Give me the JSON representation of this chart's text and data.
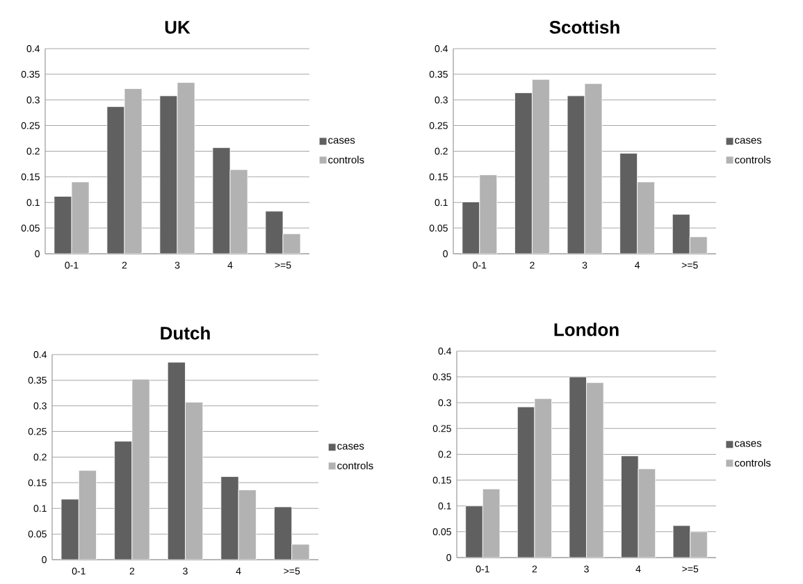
{
  "chart_data": [
    {
      "type": "bar",
      "title": "UK",
      "categories": [
        "0-1",
        "2",
        "3",
        "4",
        ">=5"
      ],
      "series": [
        {
          "name": "cases",
          "color": "#606060",
          "values": [
            0.112,
            0.287,
            0.308,
            0.207,
            0.083
          ]
        },
        {
          "name": "controls",
          "color": "#b2b2b2",
          "values": [
            0.14,
            0.322,
            0.334,
            0.164,
            0.039
          ]
        }
      ],
      "ylim": [
        0,
        0.4
      ],
      "yticks": [
        0,
        0.05,
        0.1,
        0.15,
        0.2,
        0.25,
        0.3,
        0.35,
        0.4
      ],
      "grid": "y",
      "legend": "right"
    },
    {
      "type": "bar",
      "title": "Scottish",
      "categories": [
        "0-1",
        "2",
        "3",
        "4",
        ">=5"
      ],
      "series": [
        {
          "name": "cases",
          "color": "#606060",
          "values": [
            0.101,
            0.314,
            0.308,
            0.196,
            0.077
          ]
        },
        {
          "name": "controls",
          "color": "#b2b2b2",
          "values": [
            0.154,
            0.34,
            0.332,
            0.14,
            0.033
          ]
        }
      ],
      "ylim": [
        0,
        0.4
      ],
      "yticks": [
        0,
        0.05,
        0.1,
        0.15,
        0.2,
        0.25,
        0.3,
        0.35,
        0.4
      ],
      "grid": "y",
      "legend": "right"
    },
    {
      "type": "bar",
      "title": "Dutch",
      "categories": [
        "0-1",
        "2",
        "3",
        "4",
        ">=5"
      ],
      "series": [
        {
          "name": "cases",
          "color": "#606060",
          "values": [
            0.118,
            0.231,
            0.385,
            0.162,
            0.103
          ]
        },
        {
          "name": "controls",
          "color": "#b2b2b2",
          "values": [
            0.174,
            0.352,
            0.307,
            0.136,
            0.03
          ]
        }
      ],
      "ylim": [
        0,
        0.4
      ],
      "yticks": [
        0,
        0.05,
        0.1,
        0.15,
        0.2,
        0.25,
        0.3,
        0.35,
        0.4
      ],
      "grid": "y",
      "legend": "right"
    },
    {
      "type": "bar",
      "title": "London",
      "categories": [
        "0-1",
        "2",
        "3",
        "4",
        ">=5"
      ],
      "series": [
        {
          "name": "cases",
          "color": "#606060",
          "values": [
            0.1,
            0.292,
            0.35,
            0.197,
            0.062
          ]
        },
        {
          "name": "controls",
          "color": "#b2b2b2",
          "values": [
            0.133,
            0.308,
            0.339,
            0.172,
            0.05
          ]
        }
      ],
      "ylim": [
        0,
        0.4
      ],
      "yticks": [
        0,
        0.05,
        0.1,
        0.15,
        0.2,
        0.25,
        0.3,
        0.35,
        0.4
      ],
      "grid": "y",
      "legend": "right"
    }
  ]
}
